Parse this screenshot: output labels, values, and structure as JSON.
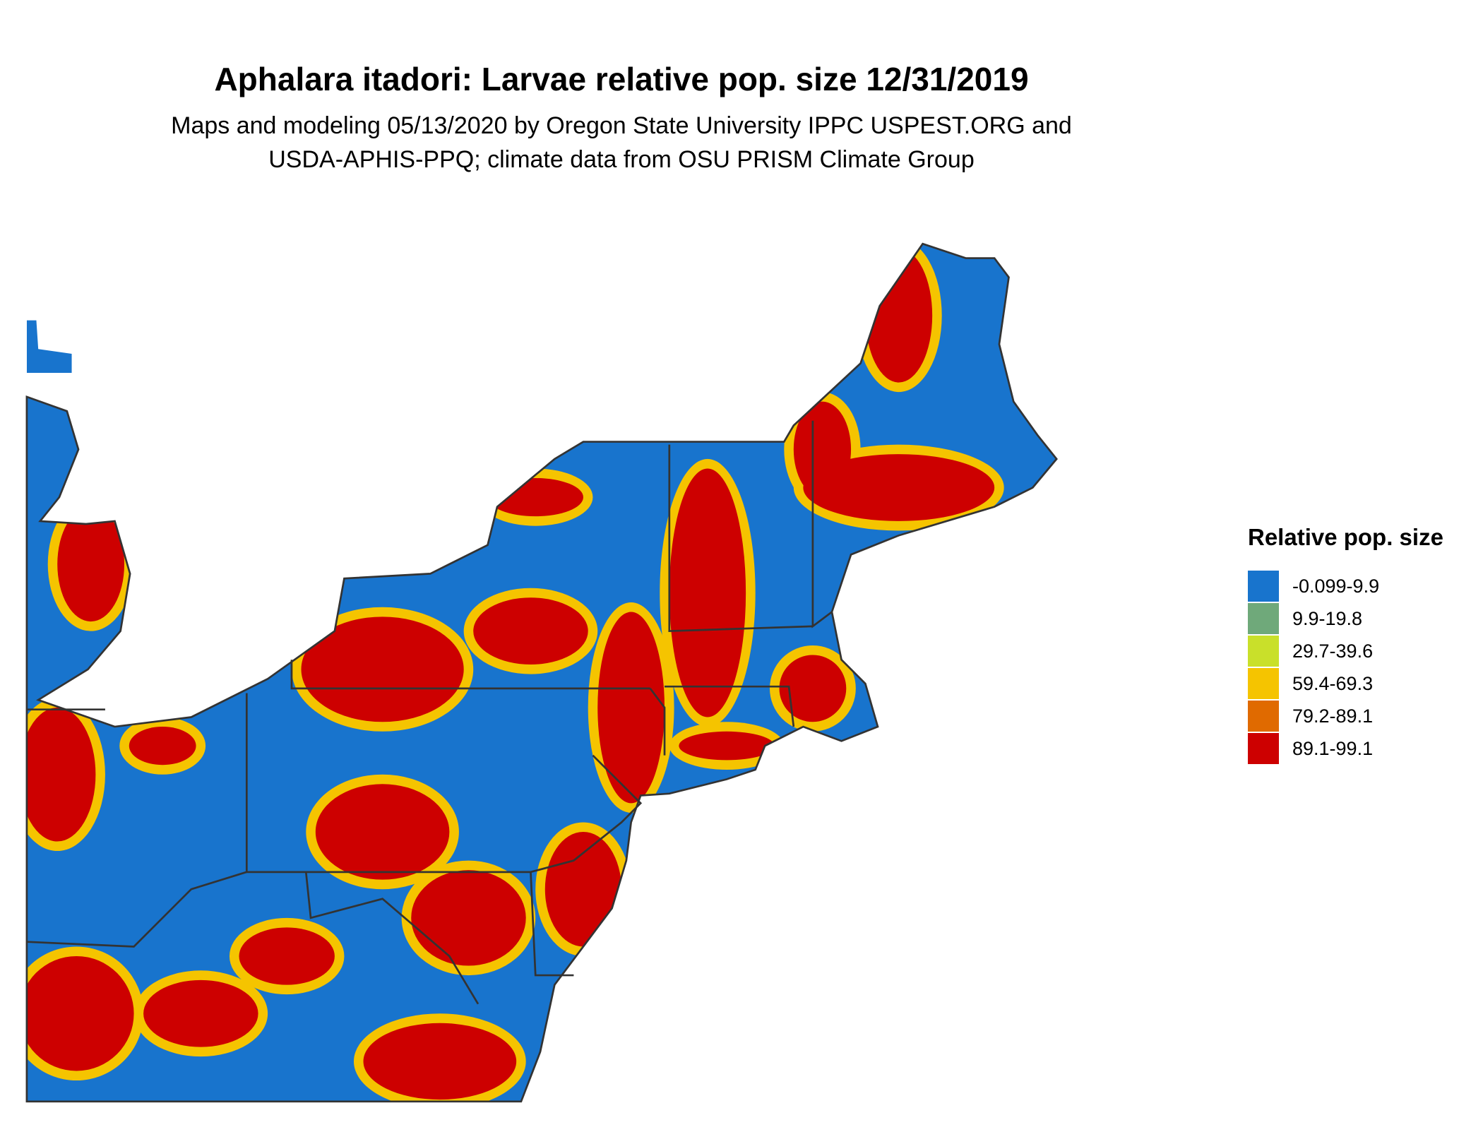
{
  "title": "Aphalara itadori: Larvae relative pop. size 12/31/2019",
  "subtitle": [
    "Maps and modeling 05/13/2020 by Oregon State University IPPC USPEST.ORG and",
    "USDA-APHIS-PPQ; climate data from OSU PRISM Climate Group"
  ],
  "legend": {
    "title": "Relative pop. size",
    "items": [
      {
        "label": "-0.099-9.9",
        "color": "#1874cd"
      },
      {
        "label": "9.9-19.8",
        "color": "#6fa97a"
      },
      {
        "label": "29.7-39.6",
        "color": "#c9e02a"
      },
      {
        "label": "59.4-69.3",
        "color": "#f5c400"
      },
      {
        "label": "79.2-89.1",
        "color": "#e06a00"
      },
      {
        "label": "89.1-99.1",
        "color": "#cd0000"
      }
    ]
  }
}
